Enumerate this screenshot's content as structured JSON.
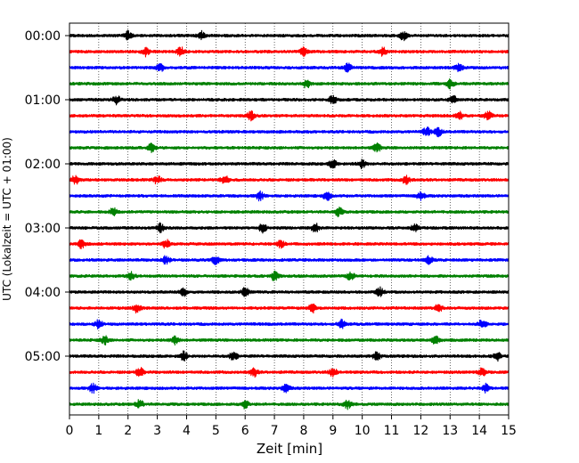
{
  "chart_data": {
    "type": "line",
    "title": "",
    "xlabel": "Zeit  [min]",
    "ylabel": "UTC (Lokalzeit = UTC + 01:00)",
    "xlim": [
      0,
      15
    ],
    "x_ticks": [
      "0",
      "1",
      "2",
      "3",
      "4",
      "5",
      "6",
      "7",
      "8",
      "9",
      "10",
      "11",
      "12",
      "13",
      "14",
      "15"
    ],
    "y_ticks": [
      "00:00",
      "01:00",
      "02:00",
      "03:00",
      "04:00",
      "05:00"
    ],
    "grid": "vertical dotted",
    "trace_interval_minutes": 15,
    "trace_count": 24,
    "trace_colors": [
      "#000000",
      "#ff0000",
      "#0000ff",
      "#008000"
    ],
    "series": [
      {
        "row": 0,
        "start": "00:00",
        "color": "#000000",
        "bursts": [
          2.0,
          4.5,
          11.4
        ]
      },
      {
        "row": 1,
        "start": "00:15",
        "color": "#ff0000",
        "bursts": [
          2.6,
          3.8,
          8.0,
          10.7
        ]
      },
      {
        "row": 2,
        "start": "00:30",
        "color": "#0000ff",
        "bursts": [
          3.1,
          9.5,
          13.3
        ]
      },
      {
        "row": 3,
        "start": "00:45",
        "color": "#008000",
        "bursts": [
          8.1,
          13.0
        ]
      },
      {
        "row": 4,
        "start": "01:00",
        "color": "#000000",
        "bursts": [
          1.6,
          9.0,
          13.1
        ]
      },
      {
        "row": 5,
        "start": "01:15",
        "color": "#ff0000",
        "bursts": [
          6.2,
          13.3,
          14.3
        ]
      },
      {
        "row": 6,
        "start": "01:30",
        "color": "#0000ff",
        "bursts": [
          12.2,
          12.6
        ]
      },
      {
        "row": 7,
        "start": "01:45",
        "color": "#008000",
        "bursts": [
          2.8,
          10.5
        ]
      },
      {
        "row": 8,
        "start": "02:00",
        "color": "#000000",
        "bursts": [
          9.0,
          10.0
        ]
      },
      {
        "row": 9,
        "start": "02:15",
        "color": "#ff0000",
        "bursts": [
          0.2,
          3.0,
          5.3,
          11.5
        ]
      },
      {
        "row": 10,
        "start": "02:30",
        "color": "#0000ff",
        "bursts": [
          6.5,
          8.8,
          12.0
        ]
      },
      {
        "row": 11,
        "start": "02:45",
        "color": "#008000",
        "bursts": [
          1.5,
          9.2
        ]
      },
      {
        "row": 12,
        "start": "03:00",
        "color": "#000000",
        "bursts": [
          3.1,
          6.6,
          8.4,
          11.8
        ]
      },
      {
        "row": 13,
        "start": "03:15",
        "color": "#ff0000",
        "bursts": [
          0.4,
          3.3,
          7.2
        ]
      },
      {
        "row": 14,
        "start": "03:30",
        "color": "#0000ff",
        "bursts": [
          3.3,
          5.0,
          12.3
        ]
      },
      {
        "row": 15,
        "start": "03:45",
        "color": "#008000",
        "bursts": [
          2.1,
          7.0,
          9.6
        ]
      },
      {
        "row": 16,
        "start": "04:00",
        "color": "#000000",
        "bursts": [
          3.9,
          6.0,
          10.6
        ]
      },
      {
        "row": 17,
        "start": "04:15",
        "color": "#ff0000",
        "bursts": [
          2.3,
          8.3,
          12.6
        ]
      },
      {
        "row": 18,
        "start": "04:30",
        "color": "#0000ff",
        "bursts": [
          1.0,
          9.3,
          14.1
        ]
      },
      {
        "row": 19,
        "start": "04:45",
        "color": "#008000",
        "bursts": [
          1.2,
          3.6,
          12.5
        ]
      },
      {
        "row": 20,
        "start": "05:00",
        "color": "#000000",
        "bursts": [
          3.9,
          5.6,
          10.5,
          14.6
        ]
      },
      {
        "row": 21,
        "start": "05:15",
        "color": "#ff0000",
        "bursts": [
          2.4,
          6.3,
          9.0,
          14.1
        ]
      },
      {
        "row": 22,
        "start": "05:30",
        "color": "#0000ff",
        "bursts": [
          0.8,
          7.4,
          14.2
        ]
      },
      {
        "row": 23,
        "start": "05:45",
        "color": "#008000",
        "bursts": [
          2.4,
          6.0,
          9.5
        ]
      }
    ]
  }
}
